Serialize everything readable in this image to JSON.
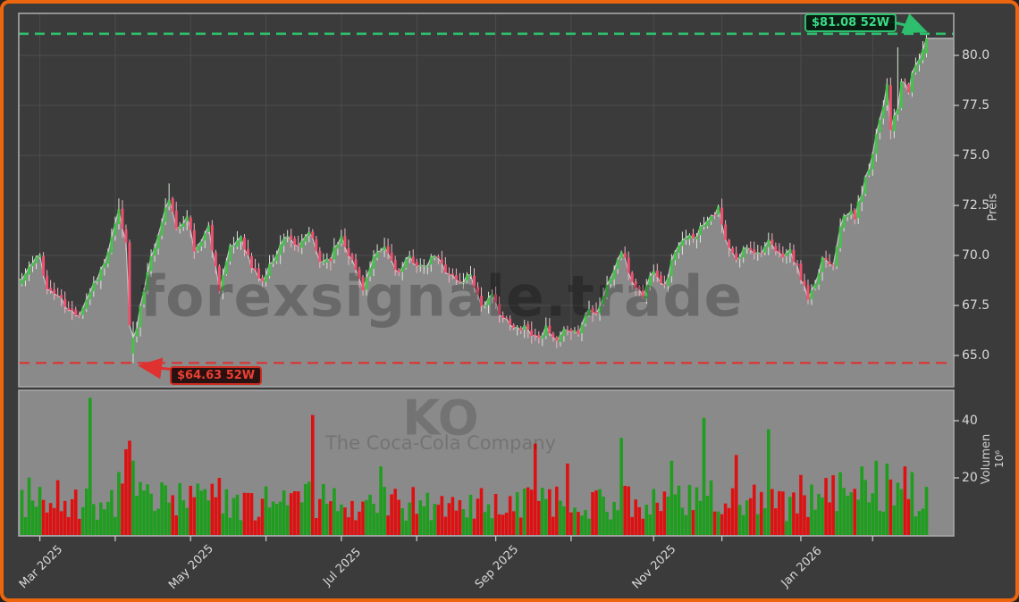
{
  "watermarks": {
    "main": "forexsignale.trade",
    "symbol": "KO",
    "company": "The Coca-Cola Company"
  },
  "annotations": {
    "high": {
      "label": "$81.08 52W",
      "price": 81.08,
      "color": "#2dbf6e"
    },
    "low": {
      "label": "$64.63 52W",
      "price": 64.63,
      "color": "#cf2b20"
    }
  },
  "axes": {
    "price": {
      "title": "Preis",
      "tick_labels": [
        "65.0",
        "67.5",
        "70.0",
        "72.5",
        "75.0",
        "77.5",
        "80.0"
      ]
    },
    "volume": {
      "title": "Volumen",
      "offset_label": "10⁶",
      "tick_labels": [
        "20",
        "40"
      ]
    },
    "x": {
      "major_ticks": [
        {
          "day": 5,
          "label": "Mar 2025"
        },
        {
          "day": 47,
          "label": "May 2025"
        },
        {
          "day": 89,
          "label": "Jul 2025"
        },
        {
          "day": 132,
          "label": "Sep 2025"
        },
        {
          "day": 176,
          "label": "Nov 2025"
        },
        {
          "day": 217,
          "label": "Jan 2026"
        }
      ],
      "minor_tick_days": [
        26,
        68,
        110,
        153,
        195,
        237
      ]
    }
  },
  "chart_data": {
    "type": "candlestick",
    "days": 253,
    "price_range_shown": [
      63.4,
      82.1
    ],
    "legend": "none",
    "grid": true,
    "close_anchors": [
      [
        0,
        68.8
      ],
      [
        2,
        69.4
      ],
      [
        5,
        70.0
      ],
      [
        7,
        68.3
      ],
      [
        10,
        68.0
      ],
      [
        13,
        67.2
      ],
      [
        16,
        67.1
      ],
      [
        20,
        68.6
      ],
      [
        23,
        69.6
      ],
      [
        25,
        70.8
      ],
      [
        27,
        72.2
      ],
      [
        29,
        70.6
      ],
      [
        30,
        66.6
      ],
      [
        31,
        65.2
      ],
      [
        33,
        67.3
      ],
      [
        35,
        69.3
      ],
      [
        38,
        71.0
      ],
      [
        41,
        72.9
      ],
      [
        43,
        71.2
      ],
      [
        46,
        72.1
      ],
      [
        48,
        70.2
      ],
      [
        52,
        71.4
      ],
      [
        55,
        68.4
      ],
      [
        58,
        70.3
      ],
      [
        61,
        71.0
      ],
      [
        64,
        69.4
      ],
      [
        67,
        68.7
      ],
      [
        71,
        70.2
      ],
      [
        74,
        71.1
      ],
      [
        77,
        70.3
      ],
      [
        80,
        71.2
      ],
      [
        83,
        69.7
      ],
      [
        86,
        69.9
      ],
      [
        89,
        71.0
      ],
      [
        92,
        69.7
      ],
      [
        95,
        68.4
      ],
      [
        98,
        69.8
      ],
      [
        101,
        70.4
      ],
      [
        105,
        69.1
      ],
      [
        108,
        69.9
      ],
      [
        112,
        69.3
      ],
      [
        115,
        70.0
      ],
      [
        118,
        69.3
      ],
      [
        122,
        68.6
      ],
      [
        125,
        69.1
      ],
      [
        128,
        67.5
      ],
      [
        131,
        67.9
      ],
      [
        134,
        66.9
      ],
      [
        137,
        66.3
      ],
      [
        140,
        66.5
      ],
      [
        143,
        65.9
      ],
      [
        146,
        66.3
      ],
      [
        149,
        65.6
      ],
      [
        152,
        66.4
      ],
      [
        155,
        66.1
      ],
      [
        158,
        67.5
      ],
      [
        160,
        67.1
      ],
      [
        164,
        68.9
      ],
      [
        167,
        70.2
      ],
      [
        170,
        68.7
      ],
      [
        173,
        68.0
      ],
      [
        176,
        69.4
      ],
      [
        179,
        68.4
      ],
      [
        182,
        70.3
      ],
      [
        185,
        70.8
      ],
      [
        188,
        71.1
      ],
      [
        191,
        71.9
      ],
      [
        194,
        72.3
      ],
      [
        196,
        70.7
      ],
      [
        199,
        69.7
      ],
      [
        202,
        70.5
      ],
      [
        205,
        70.1
      ],
      [
        208,
        70.6
      ],
      [
        211,
        70.0
      ],
      [
        214,
        70.2
      ],
      [
        217,
        68.9
      ],
      [
        219,
        67.8
      ],
      [
        221,
        68.4
      ],
      [
        223,
        69.9
      ],
      [
        226,
        69.6
      ],
      [
        228,
        71.6
      ],
      [
        231,
        72.2
      ],
      [
        232,
        71.9
      ],
      [
        234,
        73.2
      ],
      [
        236,
        74.4
      ],
      [
        238,
        76.1
      ],
      [
        240,
        77.6
      ],
      [
        241,
        78.6
      ],
      [
        242,
        76.4
      ],
      [
        244,
        77.3
      ],
      [
        245,
        78.7
      ],
      [
        247,
        78.2
      ],
      [
        248,
        79.1
      ],
      [
        250,
        79.9
      ],
      [
        251,
        80.3
      ],
      [
        252,
        80.7
      ]
    ],
    "candle_overrides": {
      "27": {
        "high": 72.85
      },
      "31": {
        "open": 65.1,
        "close": 65.9,
        "low": 64.63
      },
      "41": {
        "high": 73.6
      },
      "244": {
        "high": 80.4
      },
      "252": {
        "open": 80.1,
        "close": 80.85,
        "high": 81.08,
        "low": 79.9
      }
    },
    "volume_base_anchors": [
      [
        0,
        13
      ],
      [
        20,
        11
      ],
      [
        40,
        12
      ],
      [
        60,
        11
      ],
      [
        80,
        12
      ],
      [
        100,
        11
      ],
      [
        120,
        10
      ],
      [
        140,
        11
      ],
      [
        160,
        11
      ],
      [
        180,
        12
      ],
      [
        200,
        12
      ],
      [
        215,
        10
      ],
      [
        225,
        14
      ],
      [
        235,
        16
      ],
      [
        245,
        15
      ],
      [
        252,
        13
      ]
    ],
    "volume_spikes": {
      "19": 48,
      "27": 22,
      "29": 30,
      "30": 33,
      "31": 26,
      "55": 20,
      "81": 42,
      "100": 24,
      "143": 32,
      "152": 25,
      "167": 34,
      "181": 26,
      "190": 41,
      "199": 28,
      "208": 37,
      "217": 21,
      "228": 22,
      "234": 24,
      "238": 26,
      "241": 25,
      "246": 24,
      "248": 22
    },
    "colors": {
      "background": "#3b3b3b",
      "frame_border": "#ec660f",
      "candle_up": "#45c24a",
      "candle_down": "#ee5170",
      "wick_up": "#d9e8d9",
      "wick_down": "#f3b3c3",
      "area_fill": "#8a8a8a",
      "area_line": "#c6c6c6",
      "volume_up": "#1f9d1f",
      "volume_down": "#dd1111",
      "grid": "#4c4c4c",
      "pane_border": "#a8a8a8",
      "tick_text": "#d9d9d9",
      "high_line": "#2dbf6e",
      "low_line": "#e03131"
    }
  }
}
